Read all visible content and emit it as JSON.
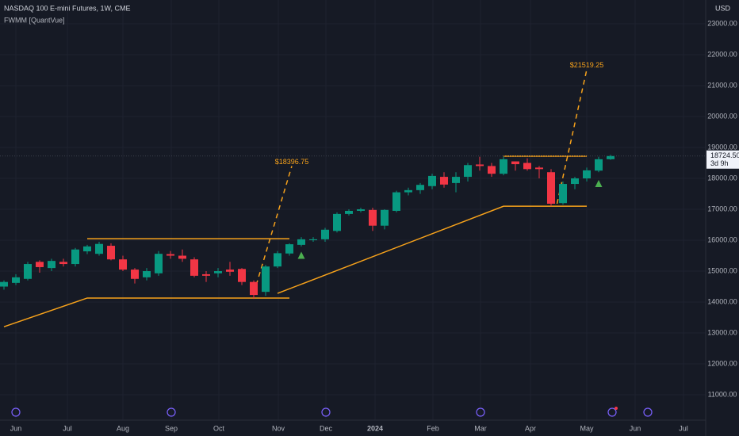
{
  "chart_data": {
    "type": "candlestick",
    "title": "NASDAQ 100 E-mini Futures, 1W, CME",
    "indicator": "FWMM [QuantVue]",
    "currency": "USD",
    "up_color": "#089981",
    "down_color": "#f23645",
    "line_color": "#f7a21b",
    "signal_color": "#4caf50",
    "grid": true,
    "ylim": [
      10180,
      23770
    ],
    "yticks": [
      {
        "value": 11000,
        "label": "11000.00"
      },
      {
        "value": 12000,
        "label": "12000.00"
      },
      {
        "value": 13000,
        "label": "13000.00"
      },
      {
        "value": 14000,
        "label": "14000.00"
      },
      {
        "value": 15000,
        "label": "15000.00"
      },
      {
        "value": 16000,
        "label": "16000.00"
      },
      {
        "value": 17000,
        "label": "17000.00"
      },
      {
        "value": 18000,
        "label": "18000.00"
      },
      {
        "value": 19000,
        "label": "19000.00"
      },
      {
        "value": 20000,
        "label": "20000.00"
      },
      {
        "value": 21000,
        "label": "21000.00"
      },
      {
        "value": 22000,
        "label": "22000.00"
      },
      {
        "value": 23000,
        "label": "23000.00"
      }
    ],
    "xlim": [
      -0.333,
      59
    ],
    "xticks": [
      {
        "value": 1,
        "label": "Jun"
      },
      {
        "value": 5.33,
        "label": "Jul"
      },
      {
        "value": 10,
        "label": "Aug"
      },
      {
        "value": 14.07,
        "label": "Sep"
      },
      {
        "value": 18.07,
        "label": "Oct"
      },
      {
        "value": 23.07,
        "label": "Nov"
      },
      {
        "value": 27.07,
        "label": "Dec"
      },
      {
        "value": 31.2,
        "label": "2024"
      },
      {
        "value": 36.07,
        "label": "Feb"
      },
      {
        "value": 40.07,
        "label": "Mar"
      },
      {
        "value": 44.27,
        "label": "Apr"
      },
      {
        "value": 49,
        "label": "May"
      },
      {
        "value": 53.07,
        "label": "Jun"
      },
      {
        "value": 57.13,
        "label": "Jul"
      }
    ],
    "open": [
      14500,
      14620,
      14750,
      15300,
      15100,
      15300,
      15230,
      15640,
      15560,
      15820,
      15380,
      15050,
      14800,
      14930,
      15550,
      15500,
      15380,
      14900,
      14930,
      15050,
      15070,
      14650,
      14330,
      15150,
      15570,
      15850,
      16000,
      16030,
      16300,
      16850,
      16950,
      16980,
      16470,
      16950,
      17550,
      17620,
      17750,
      18050,
      17850,
      18050,
      18450,
      18400,
      18150,
      18550,
      18500,
      18350,
      18200,
      17200,
      17820,
      18000,
      18250,
      18620
    ],
    "high": [
      14700,
      14900,
      15300,
      15350,
      15400,
      15400,
      15750,
      15850,
      15950,
      15900,
      15500,
      15100,
      15100,
      15650,
      15650,
      15700,
      15450,
      15000,
      15100,
      15300,
      15100,
      14700,
      15200,
      15650,
      15900,
      16100,
      16100,
      16400,
      16900,
      17000,
      17050,
      17050,
      17000,
      17600,
      17700,
      17850,
      18150,
      18200,
      18200,
      18500,
      18700,
      18500,
      18700,
      18550,
      18650,
      18400,
      18300,
      17900,
      18050,
      18350,
      18700,
      18760
    ],
    "low": [
      14400,
      14550,
      14700,
      14950,
      15000,
      15150,
      15150,
      15550,
      15500,
      15350,
      15000,
      14600,
      14700,
      14850,
      15400,
      15300,
      14800,
      14650,
      14800,
      14850,
      14550,
      14100,
      14200,
      15100,
      15500,
      15800,
      15950,
      15950,
      16250,
      16800,
      16900,
      16300,
      16350,
      16900,
      17450,
      17500,
      17650,
      17700,
      17550,
      17900,
      18250,
      18050,
      18100,
      18250,
      18250,
      18000,
      17100,
      17150,
      17650,
      17900,
      18200,
      18600
    ],
    "close": [
      14650,
      14800,
      15230,
      15130,
      15330,
      15230,
      15700,
      15800,
      15880,
      15380,
      15050,
      14750,
      15000,
      15560,
      15500,
      15400,
      14850,
      14850,
      15000,
      14980,
      14650,
      14230,
      15150,
      15580,
      15870,
      16030,
      16030,
      16340,
      16850,
      16950,
      17000,
      16470,
      16980,
      17550,
      17620,
      17790,
      18080,
      17800,
      18050,
      18430,
      18400,
      18150,
      18620,
      18460,
      18300,
      18300,
      17180,
      17820,
      18000,
      18260,
      18620,
      18724.5
    ],
    "last_price": {
      "value": 18724.5,
      "label": "18724.50"
    },
    "countdown": "3d 9h",
    "lines": [
      {
        "x": [
          0,
          7,
          24
        ],
        "y": [
          13200,
          14130,
          14130
        ]
      },
      {
        "x": [
          7,
          24
        ],
        "y": [
          16050,
          16050
        ]
      },
      {
        "x": [
          23,
          42,
          49
        ],
        "y": [
          14280,
          17100,
          17100
        ]
      },
      {
        "x": [
          42,
          49
        ],
        "y": [
          18720,
          18720
        ]
      }
    ],
    "targets": [
      {
        "x": [
          21,
          24.2
        ],
        "y": [
          14280,
          18396.75
        ],
        "label": "$18396.75"
      },
      {
        "x": [
          46.5,
          49
        ],
        "y": [
          17180,
          21519.25
        ],
        "label": "$21519.25"
      }
    ],
    "signals": {
      "x": [
        25,
        50
      ],
      "y": [
        15500,
        17820
      ]
    }
  }
}
